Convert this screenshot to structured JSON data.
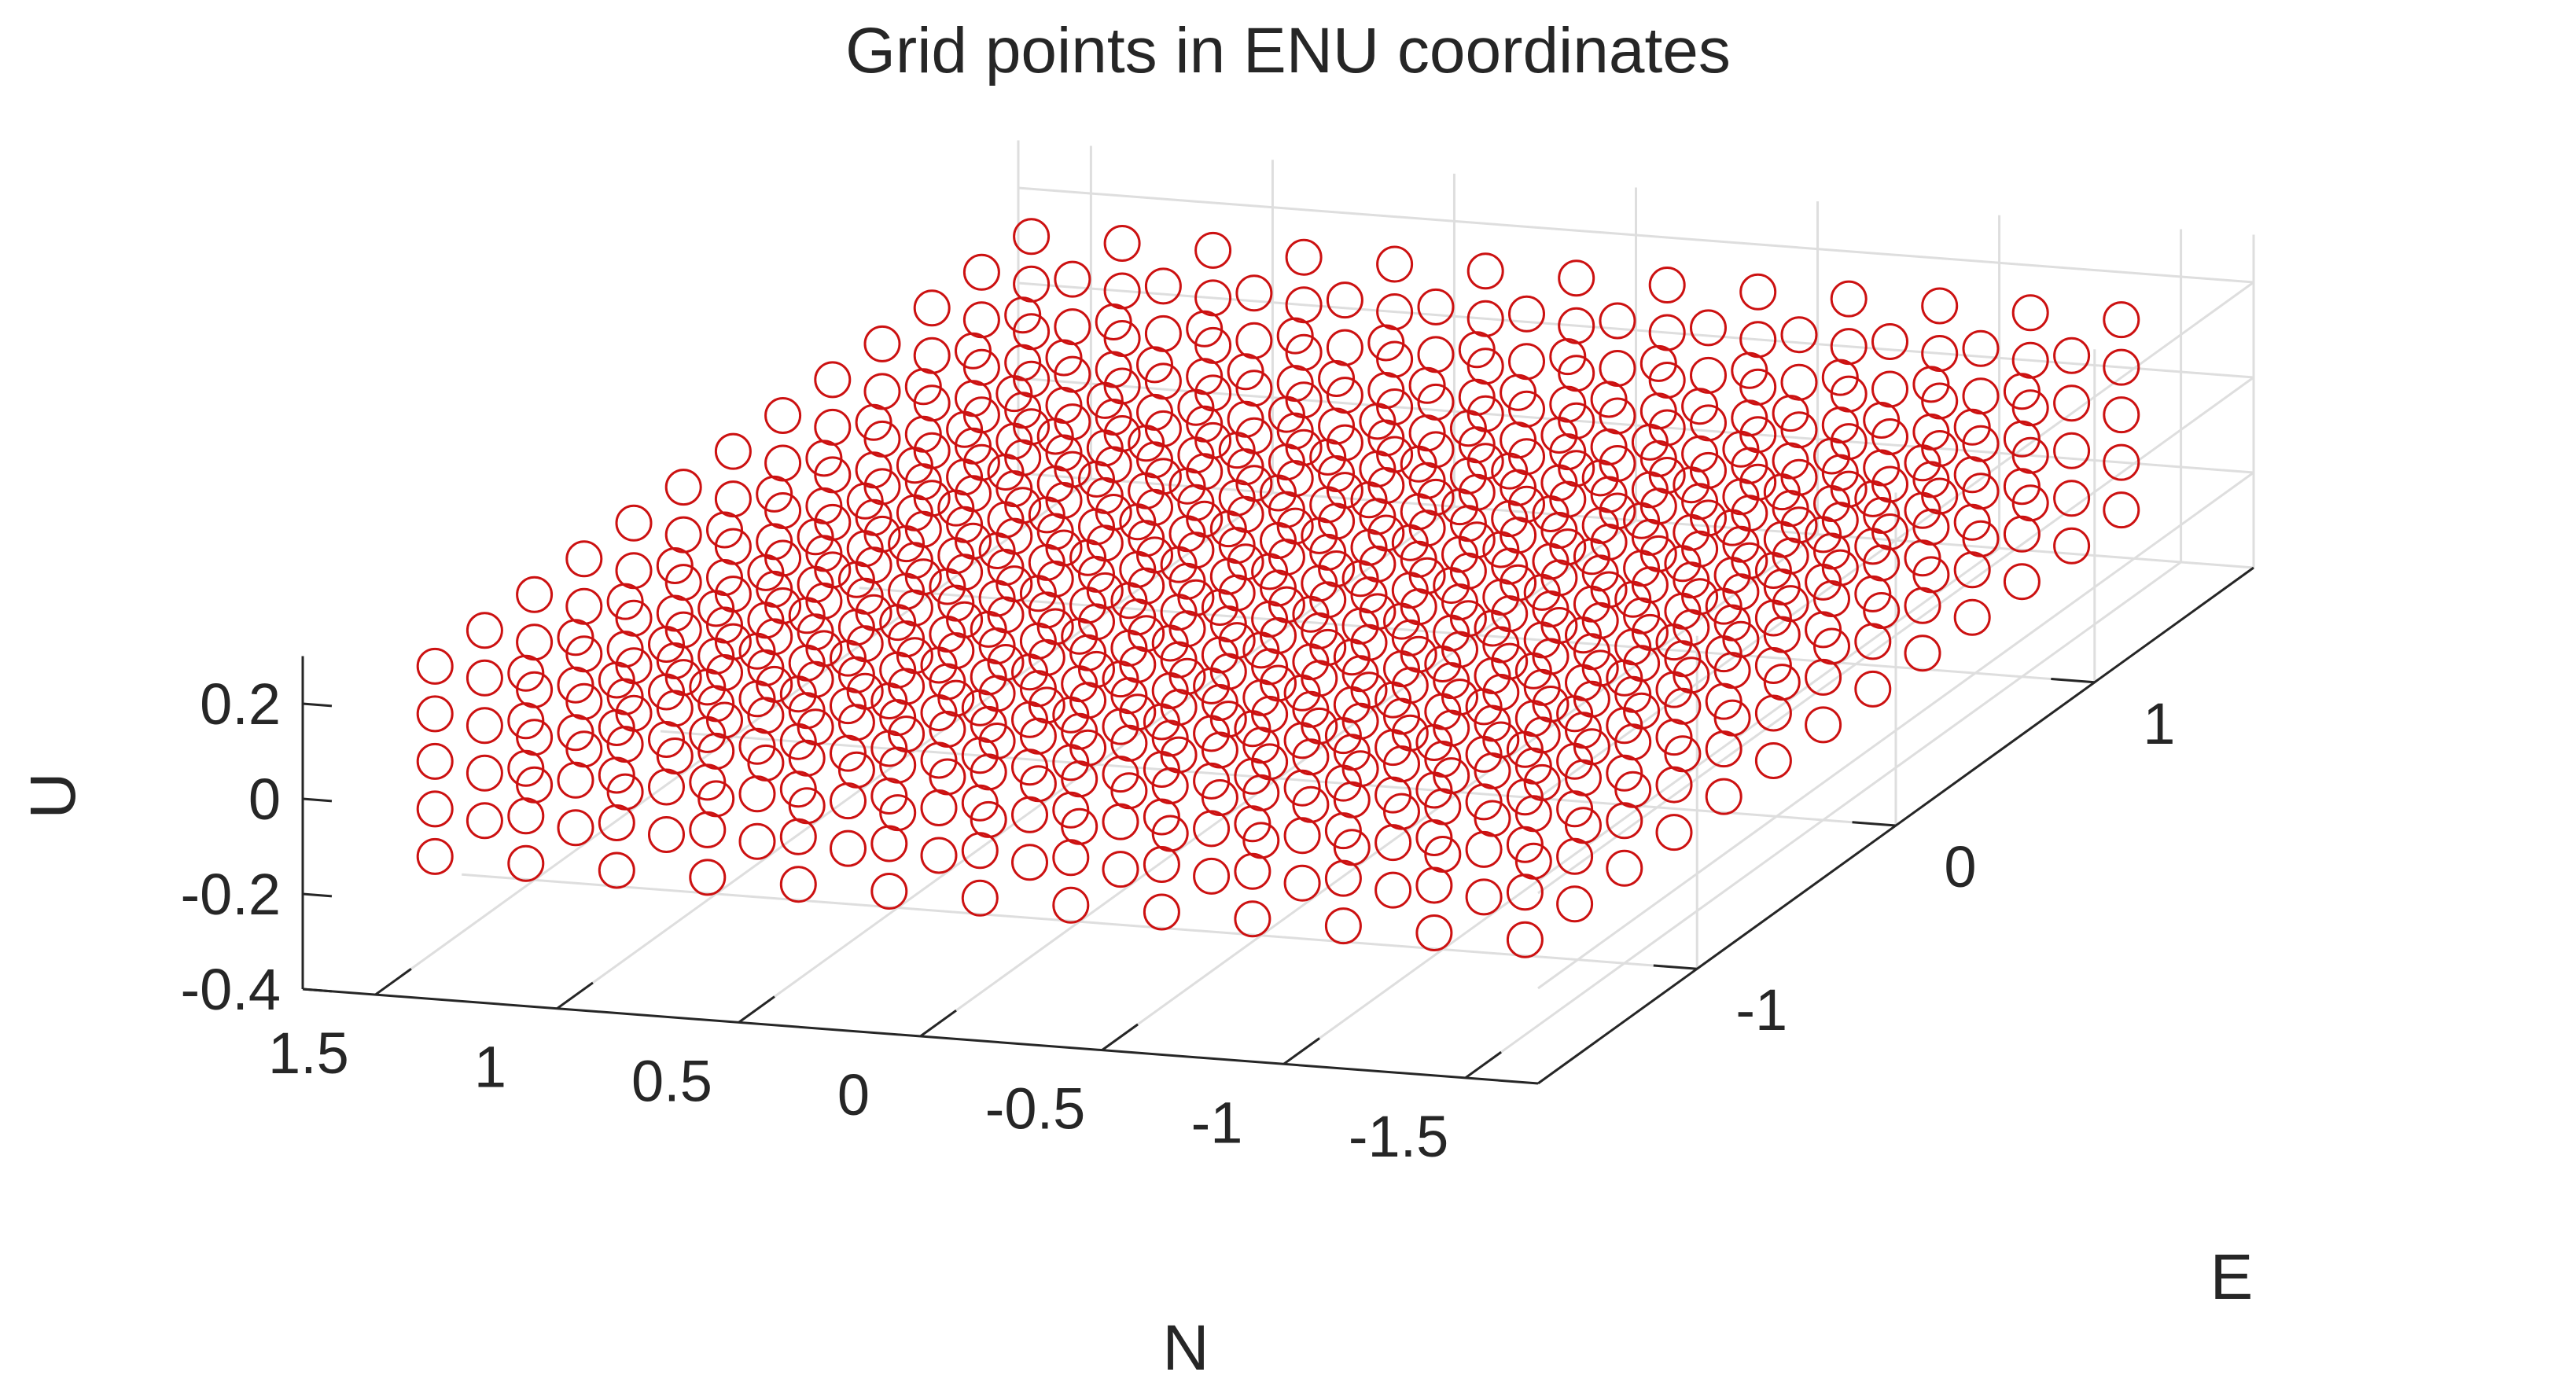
{
  "chart_data": {
    "type": "scatter",
    "view": "3d",
    "title": "Grid points in ENU coordinates",
    "xlabel": "N",
    "ylabel": "E",
    "zlabel": "U",
    "x_axis": {
      "name": "N",
      "range": [
        -1.7,
        1.7
      ],
      "ticks": [
        1.5,
        1,
        0.5,
        0,
        -0.5,
        -1,
        -1.5
      ],
      "tick_labels": [
        "1.5",
        "1",
        "0.5",
        "0",
        "-0.5",
        "-1",
        "-1.5"
      ]
    },
    "y_axis": {
      "name": "E",
      "range": [
        -1.8,
        1.8
      ],
      "ticks": [
        -1,
        0,
        1
      ],
      "tick_labels": [
        "-1",
        "0",
        "1"
      ]
    },
    "z_axis": {
      "name": "U",
      "range": [
        -0.4,
        0.3
      ],
      "ticks": [
        -0.4,
        -0.2,
        0,
        0.2
      ],
      "tick_labels": [
        "-0.4",
        "-0.2",
        "0",
        "0.2"
      ]
    },
    "grid": true,
    "box": false,
    "marker": "circle",
    "marker_face": "none",
    "marker_color": "#cc1111",
    "grid_color": "#dedede",
    "axis_color": "#262626",
    "series": [
      {
        "name": "",
        "grid_spec": {
          "n_values": [
            -1.5,
            -1.25,
            -1.0,
            -0.75,
            -0.5,
            -0.25,
            0.0,
            0.25,
            0.5,
            0.75,
            1.0,
            1.25,
            1.5
          ],
          "e_values": [
            -1.5,
            -1.25,
            -1.0,
            -0.75,
            -0.5,
            -0.25,
            0.0,
            0.25,
            0.5,
            0.75,
            1.0,
            1.25,
            1.5
          ],
          "u_values": [
            -0.2,
            -0.1,
            0.0,
            0.1,
            0.2
          ]
        }
      }
    ]
  }
}
